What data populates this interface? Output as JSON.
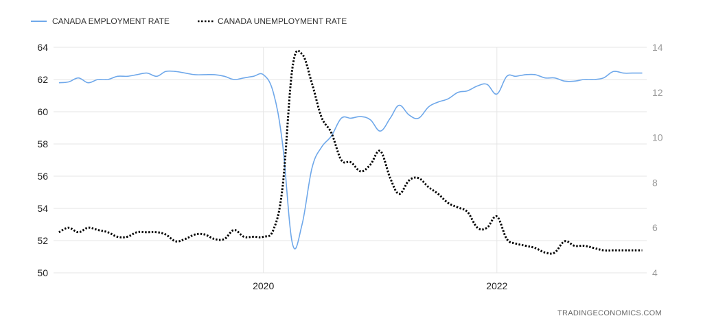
{
  "chart_data": {
    "type": "line",
    "legend": {
      "position": "top-left"
    },
    "series": [
      {
        "name": "CANADA EMPLOYMENT RATE",
        "axis": "left",
        "color": "#6fa8ea",
        "style": "solid",
        "points": [
          [
            "2018-04-01",
            61.8
          ],
          [
            "2018-05-01",
            61.85
          ],
          [
            "2018-06-01",
            62.1
          ],
          [
            "2018-07-01",
            61.8
          ],
          [
            "2018-08-01",
            62.0
          ],
          [
            "2018-09-01",
            62.0
          ],
          [
            "2018-10-01",
            62.2
          ],
          [
            "2018-11-01",
            62.2
          ],
          [
            "2018-12-01",
            62.3
          ],
          [
            "2019-01-01",
            62.4
          ],
          [
            "2019-02-01",
            62.2
          ],
          [
            "2019-03-01",
            62.5
          ],
          [
            "2019-04-01",
            62.5
          ],
          [
            "2019-05-01",
            62.4
          ],
          [
            "2019-06-01",
            62.3
          ],
          [
            "2019-07-01",
            62.3
          ],
          [
            "2019-08-01",
            62.3
          ],
          [
            "2019-09-01",
            62.2
          ],
          [
            "2019-10-01",
            62.0
          ],
          [
            "2019-11-01",
            62.1
          ],
          [
            "2019-12-01",
            62.2
          ],
          [
            "2020-01-01",
            62.3
          ],
          [
            "2020-02-01",
            61.2
          ],
          [
            "2020-03-01",
            58.0
          ],
          [
            "2020-04-01",
            51.8
          ],
          [
            "2020-05-01",
            53.0
          ],
          [
            "2020-06-01",
            56.5
          ],
          [
            "2020-07-01",
            57.8
          ],
          [
            "2020-08-01",
            58.5
          ],
          [
            "2020-09-01",
            59.6
          ],
          [
            "2020-10-01",
            59.6
          ],
          [
            "2020-11-01",
            59.7
          ],
          [
            "2020-12-01",
            59.5
          ],
          [
            "2021-01-01",
            58.8
          ],
          [
            "2021-02-01",
            59.6
          ],
          [
            "2021-03-01",
            60.4
          ],
          [
            "2021-04-01",
            59.8
          ],
          [
            "2021-05-01",
            59.6
          ],
          [
            "2021-06-01",
            60.3
          ],
          [
            "2021-07-01",
            60.6
          ],
          [
            "2021-08-01",
            60.8
          ],
          [
            "2021-09-01",
            61.2
          ],
          [
            "2021-10-01",
            61.3
          ],
          [
            "2021-11-01",
            61.6
          ],
          [
            "2021-12-01",
            61.7
          ],
          [
            "2022-01-01",
            61.1
          ],
          [
            "2022-02-01",
            62.2
          ],
          [
            "2022-03-01",
            62.2
          ],
          [
            "2022-04-01",
            62.3
          ],
          [
            "2022-05-01",
            62.3
          ],
          [
            "2022-06-01",
            62.1
          ],
          [
            "2022-07-01",
            62.1
          ],
          [
            "2022-08-01",
            61.9
          ],
          [
            "2022-09-01",
            61.9
          ],
          [
            "2022-10-01",
            62.0
          ],
          [
            "2022-11-01",
            62.0
          ],
          [
            "2022-12-01",
            62.1
          ],
          [
            "2023-01-01",
            62.5
          ],
          [
            "2023-02-01",
            62.4
          ],
          [
            "2023-03-01",
            62.4
          ],
          [
            "2023-04-01",
            62.4
          ]
        ]
      },
      {
        "name": "CANADA UNEMPLOYMENT RATE",
        "axis": "right",
        "color": "#000000",
        "style": "dotted",
        "points": [
          [
            "2018-04-01",
            5.8
          ],
          [
            "2018-05-01",
            6.0
          ],
          [
            "2018-06-01",
            5.8
          ],
          [
            "2018-07-01",
            6.0
          ],
          [
            "2018-08-01",
            5.9
          ],
          [
            "2018-09-01",
            5.8
          ],
          [
            "2018-10-01",
            5.6
          ],
          [
            "2018-11-01",
            5.6
          ],
          [
            "2018-12-01",
            5.8
          ],
          [
            "2019-01-01",
            5.8
          ],
          [
            "2019-02-01",
            5.8
          ],
          [
            "2019-03-01",
            5.7
          ],
          [
            "2019-04-01",
            5.4
          ],
          [
            "2019-05-01",
            5.5
          ],
          [
            "2019-06-01",
            5.7
          ],
          [
            "2019-07-01",
            5.7
          ],
          [
            "2019-08-01",
            5.5
          ],
          [
            "2019-09-01",
            5.5
          ],
          [
            "2019-10-01",
            5.9
          ],
          [
            "2019-11-01",
            5.6
          ],
          [
            "2019-12-01",
            5.6
          ],
          [
            "2020-01-01",
            5.6
          ],
          [
            "2020-02-01",
            5.9
          ],
          [
            "2020-03-01",
            7.8
          ],
          [
            "2020-04-01",
            13.1
          ],
          [
            "2020-05-01",
            13.7
          ],
          [
            "2020-06-01",
            12.4
          ],
          [
            "2020-07-01",
            10.9
          ],
          [
            "2020-08-01",
            10.2
          ],
          [
            "2020-09-01",
            9.0
          ],
          [
            "2020-10-01",
            8.9
          ],
          [
            "2020-11-01",
            8.5
          ],
          [
            "2020-12-01",
            8.8
          ],
          [
            "2021-01-01",
            9.4
          ],
          [
            "2021-02-01",
            8.2
          ],
          [
            "2021-03-01",
            7.5
          ],
          [
            "2021-04-01",
            8.1
          ],
          [
            "2021-05-01",
            8.2
          ],
          [
            "2021-06-01",
            7.8
          ],
          [
            "2021-07-01",
            7.5
          ],
          [
            "2021-08-01",
            7.1
          ],
          [
            "2021-09-01",
            6.9
          ],
          [
            "2021-10-01",
            6.7
          ],
          [
            "2021-11-01",
            6.0
          ],
          [
            "2021-12-01",
            6.0
          ],
          [
            "2022-01-01",
            6.5
          ],
          [
            "2022-02-01",
            5.5
          ],
          [
            "2022-03-01",
            5.3
          ],
          [
            "2022-04-01",
            5.2
          ],
          [
            "2022-05-01",
            5.1
          ],
          [
            "2022-06-01",
            4.9
          ],
          [
            "2022-07-01",
            4.9
          ],
          [
            "2022-08-01",
            5.4
          ],
          [
            "2022-09-01",
            5.2
          ],
          [
            "2022-10-01",
            5.2
          ],
          [
            "2022-11-01",
            5.1
          ],
          [
            "2022-12-01",
            5.0
          ],
          [
            "2023-01-01",
            5.0
          ],
          [
            "2023-02-01",
            5.0
          ],
          [
            "2023-03-01",
            5.0
          ],
          [
            "2023-04-01",
            5.0
          ]
        ]
      }
    ],
    "y_left": {
      "range": [
        50,
        64
      ],
      "ticks": [
        "50",
        "52",
        "54",
        "56",
        "58",
        "60",
        "62",
        "64"
      ]
    },
    "y_right": {
      "range": [
        4,
        14
      ],
      "ticks": [
        "4",
        "6",
        "8",
        "10",
        "12",
        "14"
      ]
    },
    "x": {
      "range": [
        "2018-03-15",
        "2023-04-15"
      ],
      "ticks": [
        {
          "date": "2020-01-01",
          "label": "2020"
        },
        {
          "date": "2022-01-01",
          "label": "2022"
        }
      ]
    },
    "grid": {
      "vertical": true,
      "horizontal": true,
      "color": "#e6e6e6"
    }
  },
  "source_text": "TRADINGECONOMICS.COM"
}
